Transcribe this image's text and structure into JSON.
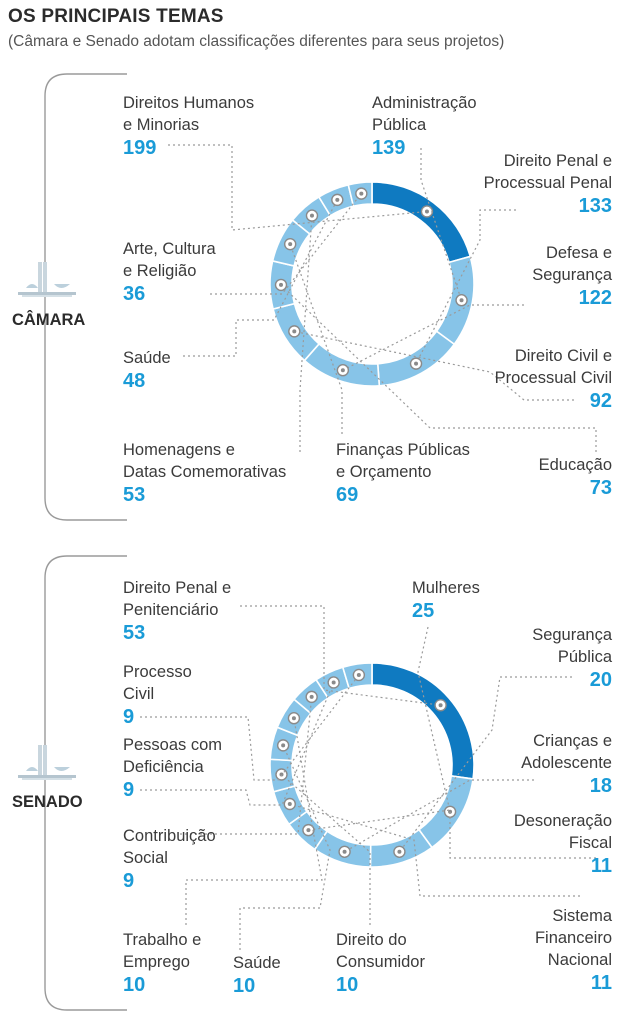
{
  "header": {
    "title": "OS PRINCIPAIS TEMAS",
    "subtitle": "(Câmara e Senado adotam classificações diferentes para seus projetos)"
  },
  "colors": {
    "accent": "#0f7ac1",
    "segment": "#87c4e8",
    "value_text": "#1a9bd7",
    "leader_line": "#9a9a9a",
    "bracket": "#9a9a9a"
  },
  "icons": [
    "congress-building-icon"
  ],
  "chart_data": [
    {
      "type": "pie",
      "variant": "donut",
      "chamber": "CÂMARA",
      "categories": [
        "Direitos Humanos e Minorias",
        "Administração Pública",
        "Direito Penal e Processual Penal",
        "Defesa e Segurança",
        "Direito Civil e Processual Civil",
        "Educação",
        "Finanças Públicas e Orçamento",
        "Homenagens e Datas Comemorativas",
        "Saúde",
        "Arte, Cultura e Religião"
      ],
      "labels": [
        "Direitos Humanos\ne Minorias",
        "Administração\nPública",
        "Direito Penal e\nProcessual Penal",
        "Defesa e\nSegurança",
        "Direito Civil e\nProcessual Civil",
        "Educação",
        "Finanças Públicas\ne Orçamento",
        "Homenagens e\nDatas Comemorativas",
        "Saúde",
        "Arte, Cultura\ne Religião"
      ],
      "values": [
        199,
        139,
        133,
        122,
        92,
        73,
        69,
        53,
        48,
        36
      ],
      "highlight_index": 0
    },
    {
      "type": "pie",
      "variant": "donut",
      "chamber": "SENADO",
      "categories": [
        "Direito Penal e Penitenciário",
        "Mulheres",
        "Segurança Pública",
        "Crianças e Adolescente",
        "Desoneração Fiscal",
        "Sistema Financeiro Nacional",
        "Direito do Consumidor",
        "Saúde",
        "Trabalho e Emprego",
        "Contribuição Social",
        "Pessoas com Deficiência",
        "Processo Civil"
      ],
      "labels": [
        "Direito Penal e\nPenitenciário",
        "Mulheres",
        "Segurança\nPública",
        "Crianças e\nAdolescente",
        "Desoneração\nFiscal",
        "Sistema\nFinanceiro\nNacional",
        "Direito do\nConsumidor",
        "Saúde",
        "Trabalho e\nEmprego",
        "Contribuição\nSocial",
        "Pessoas com\nDeficiência",
        "Processo\nCivil"
      ],
      "values": [
        53,
        25,
        20,
        18,
        11,
        11,
        10,
        10,
        10,
        9,
        9,
        9
      ],
      "highlight_index": 0
    }
  ]
}
